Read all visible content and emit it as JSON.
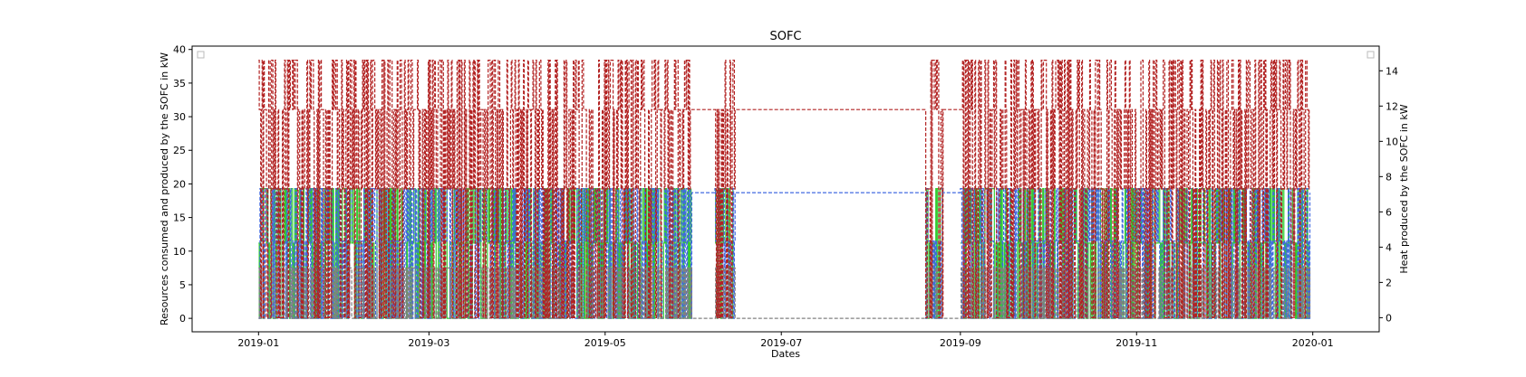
{
  "chart_data": {
    "type": "line",
    "title": "SOFC",
    "xlabel": "Dates",
    "ylabel_left": "Resources consumed and produced by the SOFC in kW",
    "ylabel_right": "Heat produced by the SOFC in kW",
    "x_range": [
      "2018-12-09",
      "2020-01-24"
    ],
    "x_ticks": [
      "2019-01",
      "2019-03",
      "2019-05",
      "2019-07",
      "2019-09",
      "2019-11",
      "2020-01"
    ],
    "ylim_left": [
      -2,
      40.5
    ],
    "ylim_right": [
      -0.8,
      15.4
    ],
    "y_ticks_left": [
      0,
      5,
      10,
      15,
      20,
      25,
      30,
      35,
      40
    ],
    "y_ticks_right": [
      0,
      2,
      4,
      6,
      8,
      10,
      12,
      14
    ],
    "grid": false,
    "legend": "empty boxes top-left and top-right",
    "data_start": "2019-01-01",
    "data_end": "2019-12-31",
    "series": [
      {
        "axis": "left",
        "color": "#4169e1",
        "style": "dashed",
        "levels": [
          0,
          11.5,
          19.3
        ],
        "standby_level": 18.7,
        "note_shape": "oscillates between levels; constant near 18.7 during low-load summer"
      },
      {
        "axis": "left",
        "color": "#808080",
        "style": "dashed",
        "levels": [
          0,
          7.5
        ],
        "standby_level": 0
      },
      {
        "axis": "left",
        "color": "#32cd32",
        "style": "solid",
        "levels": [
          0,
          11.2,
          19.3
        ],
        "standby_level": null
      },
      {
        "axis": "right",
        "color": "#b22222",
        "style": "dashed",
        "levels": [
          0,
          7.3,
          11.8,
          14.6
        ],
        "standby_level": 11.8
      }
    ],
    "regime_periods": [
      {
        "start": "2019-01-01",
        "end": "2019-05-31",
        "mode": "active"
      },
      {
        "start": "2019-05-31",
        "end": "2019-06-08",
        "mode": "standby"
      },
      {
        "start": "2019-06-08",
        "end": "2019-06-15",
        "mode": "active"
      },
      {
        "start": "2019-06-15",
        "end": "2019-08-20",
        "mode": "standby"
      },
      {
        "start": "2019-08-20",
        "end": "2019-08-26",
        "mode": "active"
      },
      {
        "start": "2019-08-26",
        "end": "2019-09-01",
        "mode": "standby"
      },
      {
        "start": "2019-09-01",
        "end": "2019-12-31",
        "mode": "active"
      }
    ]
  }
}
